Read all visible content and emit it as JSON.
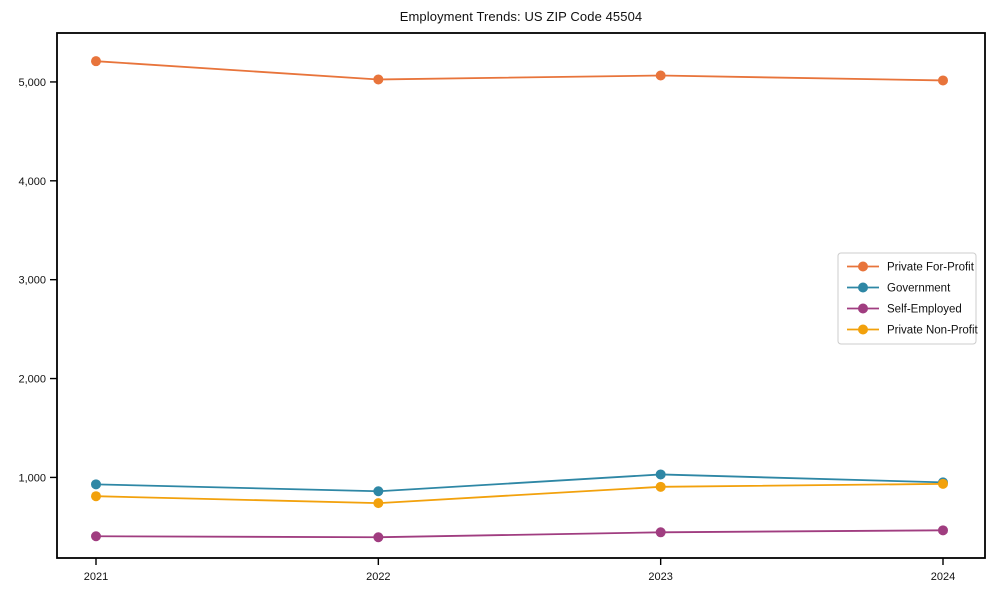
{
  "chart_data": {
    "type": "line",
    "title": "Employment Trends: US ZIP Code 45504",
    "categories": [
      "2021",
      "2022",
      "2023",
      "2024"
    ],
    "series": [
      {
        "name": "Private For-Profit",
        "color": "#E8743B",
        "values": [
          5210,
          5025,
          5065,
          5015
        ]
      },
      {
        "name": "Government",
        "color": "#2E87A5",
        "values": [
          930,
          860,
          1030,
          950
        ]
      },
      {
        "name": "Self-Employed",
        "color": "#A03D80",
        "values": [
          405,
          395,
          445,
          465
        ]
      },
      {
        "name": "Private Non-Profit",
        "color": "#F2A10C",
        "values": [
          810,
          740,
          905,
          935
        ]
      }
    ],
    "xlabel": "",
    "ylabel": "",
    "ylim": [
      185,
      5495
    ],
    "yticks": [
      1000,
      2000,
      3000,
      4000,
      5000
    ],
    "ytick_labels": [
      "1,000",
      "2,000",
      "3,000",
      "4,000",
      "5,000"
    ],
    "grid": false,
    "legend_position": "center right",
    "axis_color": "#000000",
    "legend_border_color": "#cccccc"
  }
}
